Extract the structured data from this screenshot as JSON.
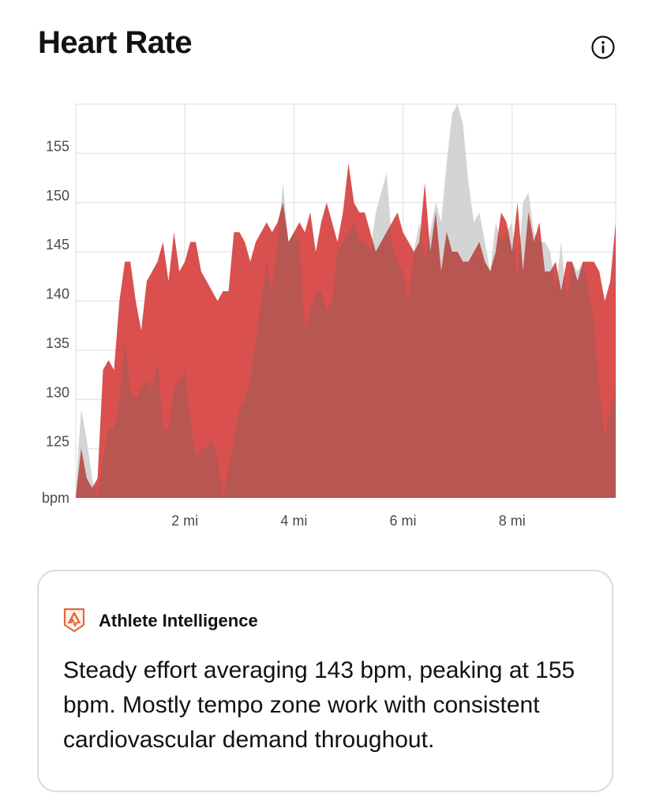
{
  "header": {
    "title": "Heart Rate",
    "info_icon": "info-icon"
  },
  "colors": {
    "current": "#d9504e",
    "comparison": "#d4d4d4",
    "overlap": "#b85652",
    "grid": "#e3e3e3",
    "accent": "#e06a3b"
  },
  "chart_data": {
    "type": "area",
    "title": "Heart Rate",
    "xlabel": "",
    "ylabel": "bpm",
    "y_unit_label": "bpm",
    "xlim": [
      0,
      9.9
    ],
    "ylim": [
      120,
      160
    ],
    "x_ticks": [
      2,
      4,
      6,
      8
    ],
    "x_tick_labels": [
      "2 mi",
      "4 mi",
      "6 mi",
      "8 mi"
    ],
    "y_ticks": [
      125,
      130,
      135,
      140,
      145,
      150,
      155
    ],
    "y_tick_labels": [
      "125",
      "130",
      "135",
      "140",
      "145",
      "150",
      "155"
    ],
    "grid": true,
    "series": [
      {
        "x": [
          0,
          0.1,
          0.2,
          0.3,
          0.4,
          0.5,
          0.6,
          0.7,
          0.8,
          0.9,
          1,
          1.1,
          1.2,
          1.3,
          1.4,
          1.5,
          1.6,
          1.7,
          1.8,
          1.9,
          2,
          2.1,
          2.2,
          2.3,
          2.4,
          2.5,
          2.6,
          2.7,
          2.8,
          2.9,
          3,
          3.1,
          3.2,
          3.3,
          3.4,
          3.5,
          3.6,
          3.7,
          3.8,
          3.9,
          4,
          4.1,
          4.2,
          4.3,
          4.4,
          4.5,
          4.6,
          4.7,
          4.8,
          4.9,
          5,
          5.1,
          5.2,
          5.3,
          5.4,
          5.5,
          5.6,
          5.7,
          5.8,
          5.9,
          6,
          6.1,
          6.2,
          6.3,
          6.4,
          6.5,
          6.6,
          6.7,
          6.8,
          6.9,
          7,
          7.1,
          7.2,
          7.3,
          7.4,
          7.5,
          7.6,
          7.7,
          7.8,
          7.9,
          8,
          8.1,
          8.2,
          8.3,
          8.4,
          8.5,
          8.6,
          8.7,
          8.8,
          8.9,
          9,
          9.1,
          9.2,
          9.3,
          9.4,
          9.5,
          9.6,
          9.7,
          9.8,
          9.9
        ],
        "values": [
          120,
          125,
          122,
          121,
          122,
          133,
          134,
          133,
          140,
          144,
          144,
          140,
          137,
          142,
          143,
          144,
          146,
          142,
          147,
          143,
          144,
          146,
          146,
          143,
          142,
          141,
          140,
          141,
          141,
          147,
          147,
          146,
          144,
          146,
          147,
          148,
          147,
          148,
          150,
          146,
          147,
          148,
          147,
          149,
          145,
          148,
          150,
          148,
          146,
          149,
          154,
          150,
          149,
          149,
          147,
          145,
          146,
          147,
          148,
          149,
          147,
          146,
          145,
          146,
          152,
          145,
          149,
          143,
          147,
          145,
          145,
          144,
          144,
          145,
          146,
          144,
          143,
          145,
          149,
          148,
          145,
          150,
          143,
          149,
          146,
          148,
          143,
          143,
          144,
          141,
          144,
          144,
          142,
          144,
          144,
          144,
          143,
          140,
          142,
          148
        ]
      },
      {
        "x": [
          0,
          0.1,
          0.2,
          0.3,
          0.4,
          0.5,
          0.6,
          0.7,
          0.8,
          0.9,
          1,
          1.1,
          1.2,
          1.3,
          1.4,
          1.5,
          1.6,
          1.7,
          1.8,
          1.9,
          2,
          2.1,
          2.2,
          2.3,
          2.4,
          2.5,
          2.6,
          2.7,
          2.8,
          2.9,
          3,
          3.1,
          3.2,
          3.3,
          3.4,
          3.5,
          3.6,
          3.7,
          3.8,
          3.9,
          4,
          4.1,
          4.2,
          4.3,
          4.4,
          4.5,
          4.6,
          4.7,
          4.8,
          4.9,
          5,
          5.1,
          5.2,
          5.3,
          5.4,
          5.5,
          5.6,
          5.7,
          5.8,
          5.9,
          6,
          6.1,
          6.2,
          6.3,
          6.4,
          6.5,
          6.6,
          6.7,
          6.8,
          6.9,
          7,
          7.1,
          7.2,
          7.3,
          7.4,
          7.5,
          7.6,
          7.7,
          7.8,
          7.9,
          8,
          8.1,
          8.2,
          8.3,
          8.4,
          8.5,
          8.6,
          8.7,
          8.8,
          8.9,
          9,
          9.1,
          9.2,
          9.3,
          9.4,
          9.5,
          9.6,
          9.7,
          9.8,
          9.9
        ],
        "values": [
          121,
          129,
          126,
          122,
          120,
          124,
          127,
          127,
          130,
          136,
          131,
          130,
          131,
          132,
          131,
          134,
          127,
          127,
          131,
          132,
          133,
          128,
          124,
          125,
          125,
          126,
          124,
          120,
          123,
          126,
          129,
          130,
          132,
          136,
          140,
          144,
          141,
          146,
          152,
          146,
          147,
          146,
          137,
          139,
          141,
          141,
          139,
          140,
          145,
          146,
          147,
          148,
          146,
          146,
          145,
          149,
          151,
          153,
          146,
          144,
          143,
          140,
          145,
          148,
          144,
          147,
          150,
          148,
          154,
          159,
          160,
          158,
          152,
          148,
          149,
          146,
          143,
          148,
          146,
          147,
          148,
          142,
          150,
          151,
          147,
          146,
          146,
          145,
          141,
          146,
          140,
          144,
          143,
          144,
          141,
          138,
          131,
          126,
          129,
          131
        ]
      }
    ]
  },
  "card": {
    "logo_icon": "athlete-intelligence-logo-icon",
    "title": "Athlete Intelligence",
    "body": "Steady effort averaging 143 bpm, peaking at 155 bpm. Mostly tempo zone work with consistent cardiovascular demand throughout."
  }
}
